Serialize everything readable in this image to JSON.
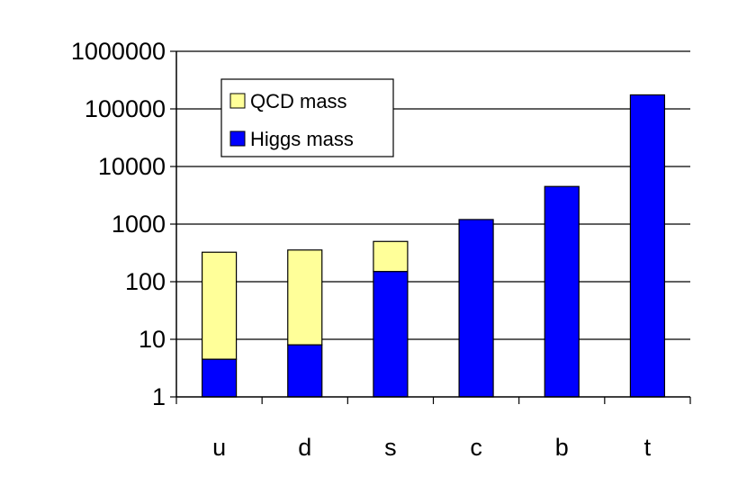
{
  "chart_data": {
    "type": "bar",
    "stacked": true,
    "scale_y": "log",
    "ylim": [
      1,
      1000000
    ],
    "y_ticks": [
      "1",
      "10",
      "100",
      "1000",
      "10000",
      "100000",
      "1000000"
    ],
    "y_tick_values": [
      1,
      10,
      100,
      1000,
      10000,
      100000,
      1000000
    ],
    "categories": [
      "u",
      "d",
      "s",
      "c",
      "b",
      "t"
    ],
    "series": [
      {
        "name": "Higgs mass",
        "color": "#0000ff",
        "values": [
          4.5,
          8,
          150,
          1200,
          4500,
          175000
        ]
      },
      {
        "name": "QCD mass",
        "color": "#ffff99",
        "values": [
          325,
          355,
          500,
          1200,
          4500,
          175000
        ]
      }
    ],
    "grid": true,
    "legend": {
      "position": "top-left",
      "entries": [
        "QCD mass",
        "Higgs mass"
      ]
    }
  }
}
